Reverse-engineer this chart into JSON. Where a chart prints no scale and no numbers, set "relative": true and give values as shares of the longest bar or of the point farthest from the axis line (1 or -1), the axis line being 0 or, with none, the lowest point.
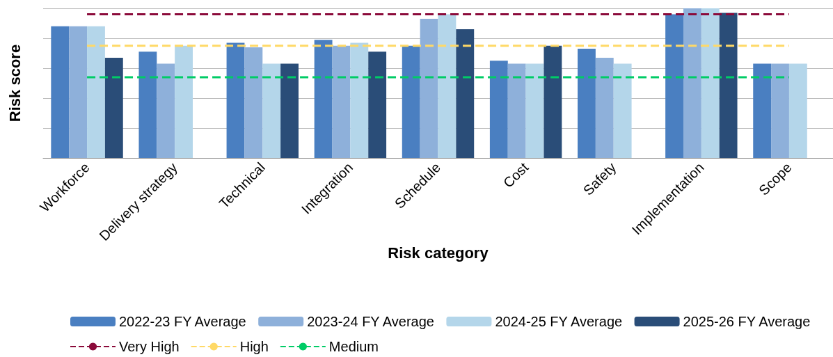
{
  "chart_data": {
    "type": "bar",
    "relative": true,
    "xlabel": "Risk category",
    "ylabel": "Risk score",
    "grid": "y",
    "legend": "bottom",
    "marker": "none",
    "categories": [
      "Workforce",
      "Delivery strategy",
      "Technical",
      "Integration",
      "Schedule",
      "Cost",
      "Safety",
      "Implementation",
      "Scope"
    ],
    "series": [
      {
        "name": "2022-23 FY Average",
        "color": "#4a7fc1",
        "values": [
          0.88,
          0.71,
          0.77,
          0.79,
          0.75,
          0.65,
          0.73,
          0.96,
          0.63
        ]
      },
      {
        "name": "2023-24 FY Average",
        "color": "#8eb0da",
        "values": [
          0.88,
          0.63,
          0.74,
          0.75,
          0.93,
          0.63,
          0.67,
          1,
          0.63
        ]
      },
      {
        "name": "2024-25 FY Average",
        "color": "#b4d6ea",
        "values": [
          0.88,
          0.75,
          0.63,
          0.77,
          0.96,
          0.63,
          0.63,
          1,
          0.63
        ]
      },
      {
        "name": "2025-26 FY Average",
        "color": "#2a4d78",
        "values": [
          0.67,
          null,
          0.63,
          0.71,
          0.86,
          0.75,
          null,
          0.97,
          null
        ]
      },
      {
        "name": "Very High",
        "type": "line",
        "line_style": "dashed",
        "color": "#8b0a3a",
        "values": [
          0.96,
          0.96,
          0.96,
          0.96,
          0.96,
          0.96,
          0.96,
          0.96,
          0.96
        ]
      },
      {
        "name": "High",
        "type": "line",
        "line_style": "dashed",
        "color": "#ffd966",
        "values": [
          0.75,
          0.75,
          0.75,
          0.75,
          0.75,
          0.75,
          0.75,
          0.75,
          0.75
        ]
      },
      {
        "name": "Medium",
        "type": "line",
        "line_style": "dashed",
        "color": "#00cc66",
        "values": [
          0.54,
          0.54,
          0.54,
          0.54,
          0.54,
          0.54,
          0.54,
          0.54,
          0.54
        ]
      }
    ]
  }
}
